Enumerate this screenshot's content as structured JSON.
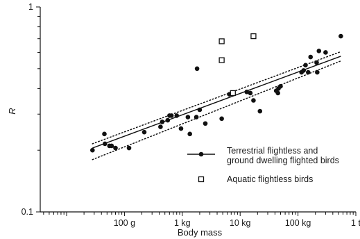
{
  "chart_data": {
    "type": "scatter",
    "title": "",
    "xlabel": "Body mass",
    "ylabel": "R",
    "x_scale": "log",
    "y_scale": "log",
    "x_unit": "kg",
    "xlim": [
      0.0035,
      1000
    ],
    "ylim": [
      0.1,
      1
    ],
    "x_ticks": [
      {
        "label": "100 g",
        "value": 0.1
      },
      {
        "label": "1 kg",
        "value": 1
      },
      {
        "label": "10 kg",
        "value": 10
      },
      {
        "label": "100 kg",
        "value": 100
      },
      {
        "label": "1 t",
        "value": 1000
      }
    ],
    "y_ticks": [
      {
        "label": "0.1",
        "value": 0.1
      },
      {
        "label": "1",
        "value": 1
      }
    ],
    "grid": false,
    "legend": {
      "position": "right",
      "entries": [
        {
          "label": "Terrestrial flightless and",
          "label2": "ground dwelling flighted birds",
          "marker": "line-filled-circle"
        },
        {
          "label": "Aquatic flightless birds",
          "marker": "open-square"
        }
      ]
    },
    "series": [
      {
        "name": "Terrestrial flightless and ground dwelling flighted birds",
        "marker": "filled-circle",
        "points": [
          [
            0.028,
            0.2
          ],
          [
            0.045,
            0.24
          ],
          [
            0.046,
            0.215
          ],
          [
            0.055,
            0.21
          ],
          [
            0.06,
            0.21
          ],
          [
            0.07,
            0.205
          ],
          [
            0.12,
            0.205
          ],
          [
            0.22,
            0.245
          ],
          [
            0.42,
            0.26
          ],
          [
            0.45,
            0.275
          ],
          [
            0.56,
            0.28
          ],
          [
            0.6,
            0.295
          ],
          [
            0.65,
            0.295
          ],
          [
            0.8,
            0.295
          ],
          [
            0.95,
            0.255
          ],
          [
            1.25,
            0.29
          ],
          [
            1.35,
            0.24
          ],
          [
            1.75,
            0.29
          ],
          [
            1.8,
            0.5
          ],
          [
            2.0,
            0.315
          ],
          [
            2.5,
            0.27
          ],
          [
            4.8,
            0.285
          ],
          [
            6.5,
            0.375
          ],
          [
            13.0,
            0.385
          ],
          [
            15.0,
            0.38
          ],
          [
            17.0,
            0.35
          ],
          [
            22.0,
            0.31
          ],
          [
            42.0,
            0.39
          ],
          [
            45.0,
            0.38
          ],
          [
            46.0,
            0.4
          ],
          [
            50.0,
            0.41
          ],
          [
            115.0,
            0.48
          ],
          [
            125.0,
            0.49
          ],
          [
            135.0,
            0.52
          ],
          [
            150.0,
            0.48
          ],
          [
            165.0,
            0.57
          ],
          [
            210.0,
            0.535
          ],
          [
            215.0,
            0.48
          ],
          [
            230.0,
            0.61
          ],
          [
            300.0,
            0.6
          ],
          [
            550.0,
            0.72
          ]
        ]
      },
      {
        "name": "Aquatic flightless birds",
        "marker": "open-square",
        "points": [
          [
            4.8,
            0.68
          ],
          [
            4.8,
            0.55
          ],
          [
            7.5,
            0.38
          ],
          [
            17.0,
            0.72
          ]
        ]
      }
    ],
    "fit_line": {
      "style": "solid",
      "from": [
        0.028,
        0.205
      ],
      "to": [
        550.0,
        0.575
      ]
    },
    "confidence_band": {
      "style": "dotted",
      "upper": {
        "from": [
          0.028,
          0.215
        ],
        "to": [
          550.0,
          0.605
        ]
      },
      "lower": {
        "from": [
          0.028,
          0.18
        ],
        "to": [
          550.0,
          0.545
        ]
      }
    }
  }
}
